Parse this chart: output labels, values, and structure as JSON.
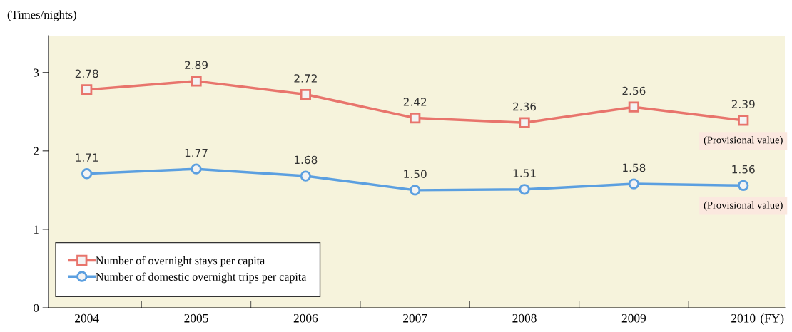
{
  "chart_data": {
    "type": "line",
    "ylabel": "(Times/nights)",
    "xlabel": "(FY)",
    "categories": [
      "2004",
      "2005",
      "2006",
      "2007",
      "2008",
      "2009",
      "2010"
    ],
    "series": [
      {
        "name": "Number of overnight stays per capita",
        "color": "#e8746c",
        "marker": "square",
        "values": [
          2.78,
          2.89,
          2.72,
          2.42,
          2.36,
          2.56,
          2.39
        ],
        "value_labels": [
          "2.78",
          "2.89",
          "2.72",
          "2.42",
          "2.36",
          "2.56",
          "2.39"
        ]
      },
      {
        "name": "Number of domestic overnight trips per capita",
        "color": "#5b9fe0",
        "marker": "circle",
        "values": [
          1.71,
          1.77,
          1.68,
          1.5,
          1.51,
          1.58,
          1.56
        ],
        "value_labels": [
          "1.71",
          "1.77",
          "1.68",
          "1.50",
          "1.51",
          "1.58",
          "1.56"
        ]
      }
    ],
    "ylim": [
      0,
      3.47
    ],
    "yticks": [
      0,
      1,
      2,
      3
    ],
    "grid": false,
    "legend": "bottom left",
    "line_style": "solid",
    "annotations": [
      {
        "text": "(Provisional value)",
        "x": "2010",
        "y": 2.39
      },
      {
        "text": "(Provisional value)",
        "x": "2010",
        "y": 1.56
      }
    ]
  }
}
